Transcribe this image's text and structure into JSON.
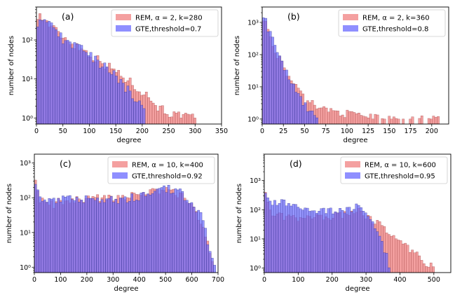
{
  "chart_data": [
    {
      "type": "bar",
      "panel": "(a)",
      "xlabel": "degree",
      "ylabel": "number of nodes",
      "xlim": [
        0,
        350
      ],
      "ylim": [
        0.7,
        700
      ],
      "yscale": "log",
      "xticks": [
        0,
        50,
        100,
        150,
        200,
        250,
        300,
        350
      ],
      "yticks": [
        {
          "v": 1,
          "t": "10⁰"
        },
        {
          "v": 10,
          "t": "10¹"
        },
        {
          "v": 100,
          "t": "10²"
        }
      ],
      "legend_position": "top-right",
      "series": [
        {
          "name": "REM, α = 2, k=280",
          "color": "#f08080",
          "points": [
            [
              0,
              500
            ],
            [
              50,
              120
            ],
            [
              100,
              45
            ],
            [
              150,
              16
            ],
            [
              200,
              5
            ],
            [
              230,
              2
            ],
            [
              260,
              1.2
            ],
            [
              300,
              1
            ]
          ]
        },
        {
          "name": "GTE,threshold=0.7",
          "color": "#6a6aff",
          "points": [
            [
              0,
              300
            ],
            [
              20,
              300
            ],
            [
              50,
              110
            ],
            [
              100,
              45
            ],
            [
              150,
              12
            ],
            [
              180,
              4
            ],
            [
              200,
              2
            ],
            [
              210,
              1
            ]
          ]
        }
      ]
    },
    {
      "type": "bar",
      "panel": "(b)",
      "xlabel": "degree",
      "ylabel": "number of nodes",
      "xlim": [
        0,
        220
      ],
      "ylim": [
        0.7,
        3000
      ],
      "yscale": "log",
      "xticks": [
        0,
        25,
        50,
        75,
        100,
        125,
        150,
        175,
        200
      ],
      "yticks": [
        {
          "v": 1,
          "t": "10⁰"
        },
        {
          "v": 10,
          "t": "10¹"
        },
        {
          "v": 100,
          "t": "10²"
        },
        {
          "v": 1000,
          "t": "10³"
        }
      ],
      "legend_position": "top-right",
      "series": [
        {
          "name": "REM, α = 2, k=360",
          "color": "#f08080",
          "points": [
            [
              0,
              2000
            ],
            [
              10,
              300
            ],
            [
              25,
              40
            ],
            [
              40,
              10
            ],
            [
              50,
              4
            ],
            [
              75,
              2
            ],
            [
              100,
              1.5
            ],
            [
              150,
              1
            ],
            [
              210,
              1
            ]
          ]
        },
        {
          "name": "GTE,threshold=0.8",
          "color": "#6a6aff",
          "points": [
            [
              0,
              2500
            ],
            [
              10,
              400
            ],
            [
              25,
              45
            ],
            [
              40,
              8
            ],
            [
              50,
              3
            ],
            [
              60,
              1.5
            ],
            [
              65,
              1
            ]
          ]
        }
      ]
    },
    {
      "type": "bar",
      "panel": "(c)",
      "xlabel": "degree",
      "ylabel": "number of nodes",
      "xlim": [
        0,
        700
      ],
      "ylim": [
        0.7,
        1800
      ],
      "yscale": "log",
      "xticks": [
        0,
        100,
        200,
        300,
        400,
        500,
        600,
        700
      ],
      "yticks": [
        {
          "v": 1,
          "t": "10⁰"
        },
        {
          "v": 10,
          "t": "10¹"
        },
        {
          "v": 100,
          "t": "10²"
        },
        {
          "v": 1000,
          "t": "10³"
        }
      ],
      "legend_position": "top-right",
      "series": [
        {
          "name": "REM, α = 10, k=400",
          "color": "#f08080",
          "points": [
            [
              0,
              1000
            ],
            [
              5,
              400
            ],
            [
              15,
              100
            ],
            [
              50,
              60
            ],
            [
              100,
              80
            ],
            [
              200,
              90
            ],
            [
              300,
              110
            ],
            [
              400,
              120
            ],
            [
              500,
              180
            ],
            [
              560,
              120
            ],
            [
              600,
              60
            ],
            [
              640,
              20
            ],
            [
              660,
              5
            ],
            [
              680,
              1
            ]
          ]
        },
        {
          "name": "GTE,threshold=0.92",
          "color": "#6a6aff",
          "points": [
            [
              0,
              800
            ],
            [
              5,
              300
            ],
            [
              15,
              120
            ],
            [
              50,
              80
            ],
            [
              100,
              90
            ],
            [
              200,
              100
            ],
            [
              300,
              90
            ],
            [
              400,
              110
            ],
            [
              500,
              200
            ],
            [
              560,
              140
            ],
            [
              600,
              80
            ],
            [
              640,
              25
            ],
            [
              660,
              6
            ],
            [
              690,
              1
            ]
          ]
        }
      ]
    },
    {
      "type": "bar",
      "panel": "(d)",
      "xlabel": "degree",
      "ylabel": "number of nodes",
      "xlim": [
        0,
        550
      ],
      "ylim": [
        0.7,
        8000
      ],
      "yscale": "log",
      "xticks": [
        0,
        100,
        200,
        300,
        400,
        500
      ],
      "yticks": [
        {
          "v": 1,
          "t": "10⁰"
        },
        {
          "v": 10,
          "t": "10¹"
        },
        {
          "v": 100,
          "t": "10²"
        },
        {
          "v": 1000,
          "t": "10³"
        }
      ],
      "legend_position": "top-right",
      "series": [
        {
          "name": "REM, α = 10, k=600",
          "color": "#f08080",
          "points": [
            [
              0,
              5000
            ],
            [
              5,
              200
            ],
            [
              20,
              80
            ],
            [
              50,
              60
            ],
            [
              100,
              50
            ],
            [
              200,
              60
            ],
            [
              280,
              90
            ],
            [
              300,
              60
            ],
            [
              330,
              40
            ],
            [
              360,
              20
            ],
            [
              400,
              8
            ],
            [
              450,
              3
            ],
            [
              480,
              1.5
            ],
            [
              500,
              1
            ]
          ]
        },
        {
          "name": "GTE,threshold=0.95",
          "color": "#6a6aff",
          "points": [
            [
              0,
              2500
            ],
            [
              5,
              250
            ],
            [
              20,
              150
            ],
            [
              50,
              200
            ],
            [
              100,
              120
            ],
            [
              200,
              90
            ],
            [
              280,
              130
            ],
            [
              300,
              80
            ],
            [
              320,
              40
            ],
            [
              340,
              10
            ],
            [
              360,
              3
            ],
            [
              370,
              1
            ]
          ]
        }
      ]
    }
  ]
}
